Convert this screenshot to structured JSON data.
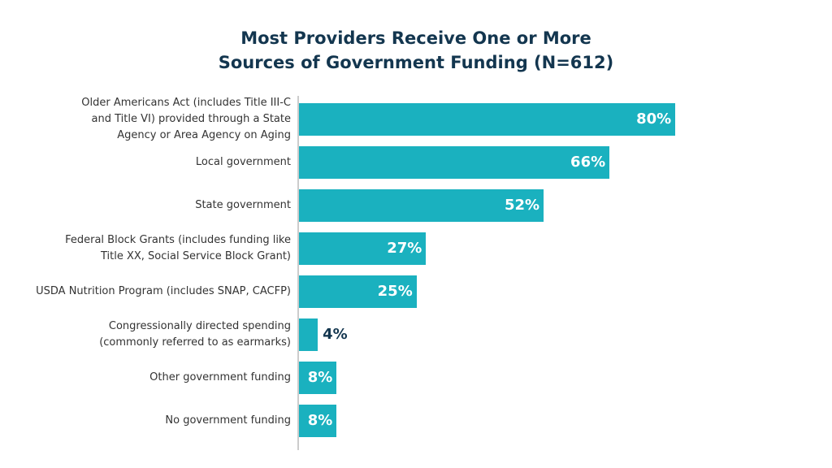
{
  "chart_data": {
    "type": "barh",
    "title": "Most Providers Receive One or More\nSources of Government Funding (N=612)",
    "categories": [
      "Older Americans Act (includes Title III-C\nand Title VI) provided through a State\nAgency or Area Agency on Aging",
      "Local government",
      "State government",
      "Federal Block Grants (includes funding like\nTitle XX, Social Service Block Grant)",
      "USDA Nutrition Program (includes SNAP, CACFP)",
      "Congressionally directed spending\n(commonly referred to as earmarks)",
      "Other government funding",
      "No government funding"
    ],
    "values": [
      80,
      66,
      52,
      27,
      25,
      4,
      8,
      8
    ],
    "value_labels": [
      "80%",
      "66%",
      "52%",
      "27%",
      "25%",
      "4%",
      "8%",
      "8%"
    ],
    "color": "#1ab1bf"
  }
}
